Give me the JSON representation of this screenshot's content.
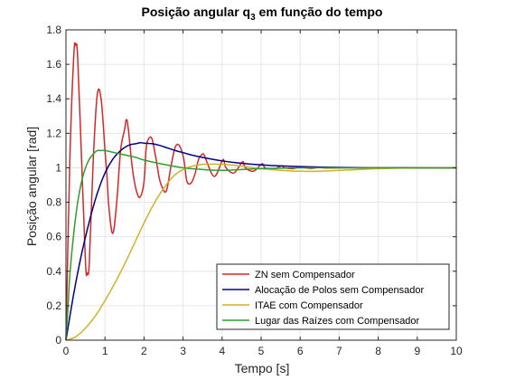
{
  "chart_data": {
    "type": "line",
    "title": {
      "main": "Posição angular q",
      "sub": "3",
      "rest": " em função do tempo"
    },
    "xlabel": "Tempo [s]",
    "ylabel": "Posição angular [rad]",
    "xlim": [
      0,
      10
    ],
    "ylim": [
      0,
      1.8
    ],
    "xticks": [
      "0",
      "1",
      "2",
      "3",
      "4",
      "5",
      "6",
      "7",
      "8",
      "9",
      "10"
    ],
    "yticks": [
      "0",
      "0.2",
      "0.4",
      "0.6",
      "0.8",
      "1",
      "1.2",
      "1.4",
      "1.6",
      "1.8"
    ],
    "grid": true,
    "legend_position": "bottom-right",
    "series": [
      {
        "name": "ZN sem Compensador",
        "color": "#d62728",
        "x": [
          0,
          0.1,
          0.2,
          0.25,
          0.3,
          0.4,
          0.5,
          0.55,
          0.6,
          0.7,
          0.8,
          0.9,
          1.0,
          1.05,
          1.1,
          1.2,
          1.3,
          1.4,
          1.5,
          1.55,
          1.6,
          1.7,
          1.8,
          1.9,
          2.0,
          2.05,
          2.1,
          2.2,
          2.3,
          2.4,
          2.5,
          2.55,
          2.6,
          2.7,
          2.8,
          2.9,
          3.0,
          3.05,
          3.1,
          3.2,
          3.3,
          3.4,
          3.5,
          3.55,
          3.6,
          3.8,
          4.0,
          4.05,
          4.1,
          4.3,
          4.5,
          4.55,
          4.6,
          4.8,
          5.0,
          5.05,
          5.1,
          5.3,
          5.5,
          5.55,
          5.6,
          5.8,
          6.0,
          6.05,
          6.1,
          6.3,
          6.5,
          6.55,
          6.6,
          6.8,
          7.0,
          7.5,
          8.0,
          9.0,
          10.0
        ],
        "values": [
          0,
          1.05,
          1.65,
          1.71,
          1.64,
          1.05,
          0.45,
          0.39,
          0.46,
          1.05,
          1.42,
          1.4,
          1.1,
          0.95,
          0.77,
          0.62,
          0.8,
          1.1,
          1.22,
          1.28,
          1.22,
          1.0,
          0.87,
          0.83,
          0.92,
          1.1,
          1.16,
          1.17,
          1.06,
          0.93,
          0.87,
          0.86,
          0.89,
          1.02,
          1.12,
          1.13,
          1.07,
          1.0,
          0.92,
          0.91,
          0.96,
          1.05,
          1.08,
          1.07,
          1.04,
          0.95,
          1.04,
          1.04,
          1.0,
          0.97,
          1.03,
          1.03,
          1.0,
          0.98,
          1.02,
          1.02,
          1.0,
          0.99,
          1.01,
          1.01,
          1.0,
          0.995,
          1.005,
          1.005,
          1.0,
          0.997,
          1.003,
          1.003,
          1.0,
          0.999,
          1.0,
          1.0,
          1.0,
          1.0,
          1.0
        ]
      },
      {
        "name": "Alocação de Polos sem Compensador",
        "color": "#00008b",
        "x": [
          0,
          0.2,
          0.4,
          0.6,
          0.8,
          1.0,
          1.2,
          1.4,
          1.6,
          1.8,
          1.9,
          2.0,
          2.2,
          2.4,
          2.6,
          2.8,
          3.0,
          3.2,
          3.5,
          4.0,
          4.5,
          5.0,
          5.5,
          6.0,
          6.5,
          7.0,
          7.5,
          8.0,
          9.0,
          10.0
        ],
        "values": [
          0,
          0.27,
          0.5,
          0.69,
          0.85,
          0.97,
          1.05,
          1.1,
          1.13,
          1.14,
          1.145,
          1.143,
          1.14,
          1.13,
          1.115,
          1.1,
          1.088,
          1.075,
          1.06,
          1.04,
          1.026,
          1.017,
          1.011,
          1.007,
          1.004,
          1.002,
          1.001,
          1.0,
          1.0,
          1.0
        ]
      },
      {
        "name": "ITAE com Compensador",
        "color": "#d4b02a",
        "x": [
          0,
          0.25,
          0.5,
          0.75,
          1.0,
          1.25,
          1.5,
          1.75,
          2.0,
          2.25,
          2.5,
          2.75,
          3.0,
          3.25,
          3.5,
          4.0,
          4.5,
          5.0,
          5.5,
          6.0,
          6.5,
          7.0,
          7.5,
          8.0,
          9.0,
          10.0
        ],
        "values": [
          0,
          0.02,
          0.07,
          0.14,
          0.23,
          0.33,
          0.44,
          0.56,
          0.68,
          0.79,
          0.88,
          0.95,
          0.99,
          1.01,
          1.02,
          1.02,
          1.01,
          0.995,
          0.985,
          0.98,
          0.98,
          0.985,
          0.99,
          0.995,
          1.0,
          1.0
        ]
      },
      {
        "name": "Lugar das Raízes com Compensador",
        "color": "#2ca02c",
        "x": [
          0,
          0.05,
          0.1,
          0.2,
          0.3,
          0.4,
          0.5,
          0.6,
          0.7,
          0.8,
          0.9,
          1.0,
          1.2,
          1.4,
          1.6,
          1.8,
          2.0,
          2.5,
          3.0,
          3.5,
          4.0,
          4.5,
          5.0,
          6.0,
          7.0,
          8.0,
          9.0,
          10.0
        ],
        "values": [
          0,
          0.18,
          0.38,
          0.62,
          0.8,
          0.92,
          1.0,
          1.05,
          1.08,
          1.1,
          1.1,
          1.1,
          1.09,
          1.08,
          1.07,
          1.06,
          1.045,
          1.02,
          1.0,
          0.99,
          0.985,
          0.99,
          0.995,
          1.0,
          1.0,
          1.0,
          1.0,
          1.0
        ]
      }
    ]
  }
}
